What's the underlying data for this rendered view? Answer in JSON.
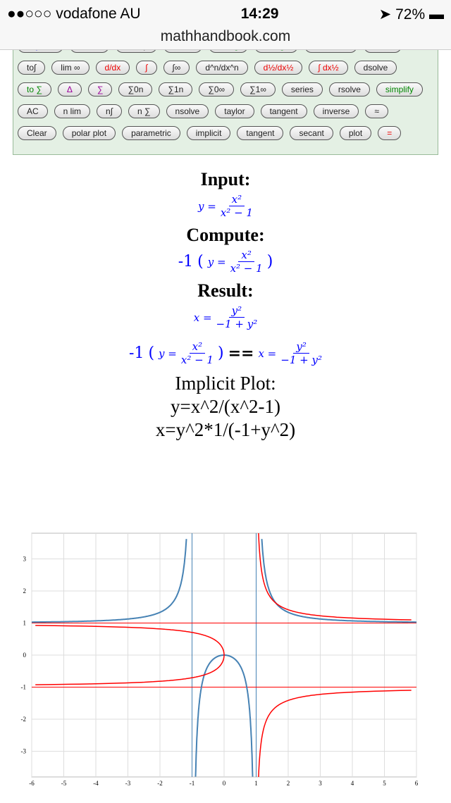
{
  "status": {
    "carrier": "●●○○○ vodafone AU",
    "time": "14:29",
    "battery": "72%"
  },
  "url": "mathhandbook.com",
  "keypad": [
    [
      [
        "expand",
        "blue"
      ],
      [
        "factor",
        "blue"
      ],
      [
        "to exp",
        ""
      ],
      [
        "to sin",
        ""
      ],
      [
        "to trig",
        "green"
      ],
      [
        "to trigh",
        "green"
      ],
      [
        "definition",
        ""
      ],
      [
        "solve",
        ""
      ]
    ],
    [
      [
        "to∫",
        ""
      ],
      [
        "lim ∞",
        ""
      ],
      [
        "d/dx",
        "red"
      ],
      [
        "∫",
        "red"
      ],
      [
        "∫∞",
        ""
      ],
      [
        "d^n/dx^n",
        ""
      ],
      [
        "d½/dx½",
        "red"
      ],
      [
        "∫ dx½",
        "red"
      ],
      [
        "dsolve",
        ""
      ]
    ],
    [
      [
        "to ∑",
        "green"
      ],
      [
        "Δ",
        "purple"
      ],
      [
        "∑",
        "purple"
      ],
      [
        "∑0n",
        ""
      ],
      [
        "∑1n",
        ""
      ],
      [
        "∑0∞",
        ""
      ],
      [
        "∑1∞",
        ""
      ],
      [
        "series",
        ""
      ],
      [
        "rsolve",
        ""
      ],
      [
        "simplify",
        "green"
      ]
    ],
    [
      [
        "AC",
        ""
      ],
      [
        "n lim",
        ""
      ],
      [
        "n∫",
        ""
      ],
      [
        "n ∑",
        ""
      ],
      [
        "nsolve",
        ""
      ],
      [
        "taylor",
        ""
      ],
      [
        "tangent",
        ""
      ],
      [
        "inverse",
        ""
      ],
      [
        "≈",
        ""
      ]
    ],
    [
      [
        "Clear",
        ""
      ],
      [
        "polar plot",
        ""
      ],
      [
        "parametric",
        ""
      ],
      [
        "implicit",
        ""
      ],
      [
        "tangent",
        ""
      ],
      [
        "secant",
        ""
      ],
      [
        "plot",
        ""
      ],
      [
        "=",
        "red"
      ]
    ]
  ],
  "input": {
    "heading": "Input:",
    "lhs": "y =",
    "num": "x²",
    "den": "x² − 1"
  },
  "compute": {
    "heading": "Compute:",
    "prefix": "-1",
    "lhs": "y =",
    "num": "x²",
    "den": "x² − 1"
  },
  "result": {
    "heading": "Result:",
    "lhs": "x =",
    "num": "y²",
    "den": "−1 + y²",
    "eq": "=="
  },
  "plot_title": [
    "Implicit Plot:",
    "y=x^2/(x^2-1)",
    "x=y^2*1/(-1+y^2)"
  ],
  "chart_data": {
    "type": "line",
    "xlim": [
      -6,
      6
    ],
    "ylim": [
      -3.8,
      3.8
    ],
    "xticks": [
      -6,
      -5,
      -4,
      -3,
      -2,
      -1,
      0,
      1,
      2,
      3,
      4,
      5,
      6
    ],
    "yticks": [
      -3,
      -2,
      -1,
      0,
      1,
      2,
      3
    ],
    "grid": true,
    "series": [
      {
        "expr": "y=x^2/(x^2-1)",
        "color": "#4682b4",
        "asymptotes": {
          "x": [
            -1,
            1
          ]
        }
      },
      {
        "expr": "x=y^2/(-1+y^2)",
        "color": "#ff0000",
        "asymptotes": {
          "y": [
            -1,
            1
          ]
        }
      }
    ]
  }
}
